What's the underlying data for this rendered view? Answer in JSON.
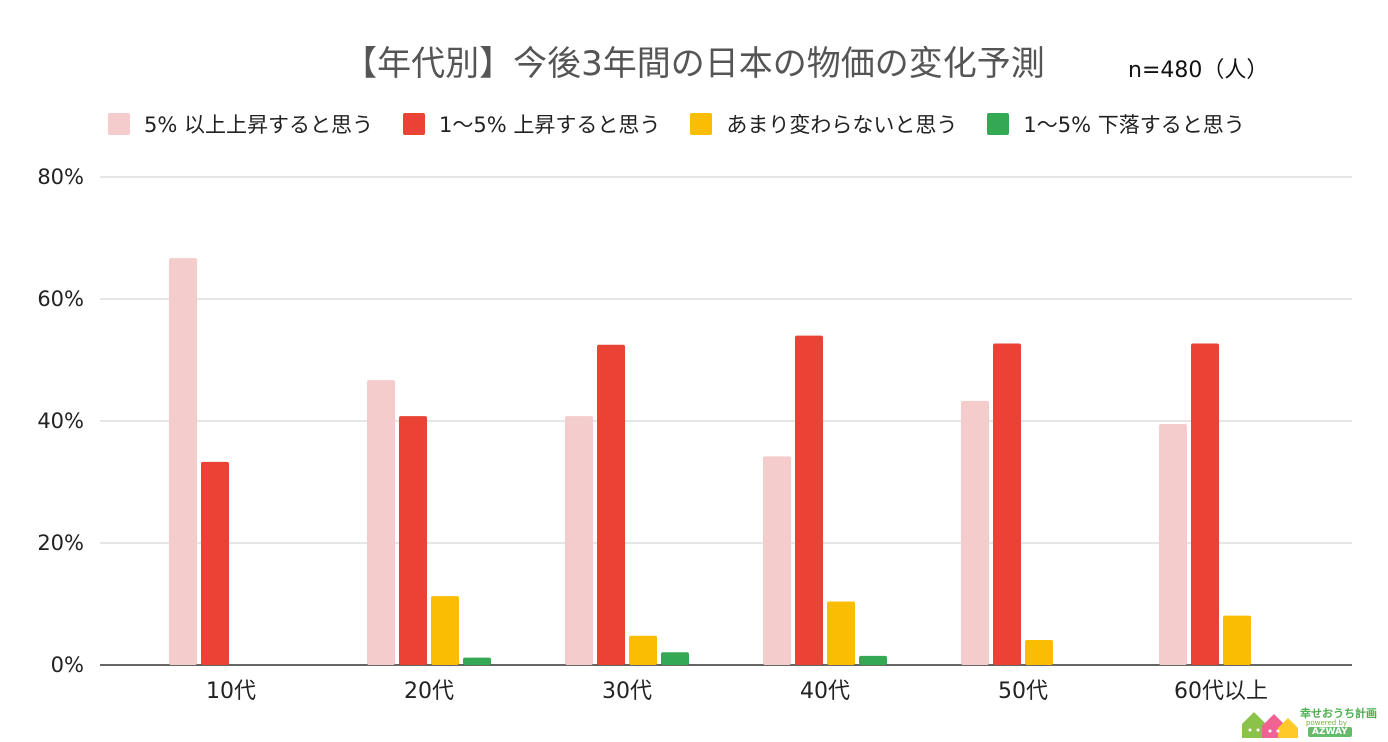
{
  "header": {
    "title": "【年代別】今後3年間の日本の物価の変化予測",
    "sample_size": "n=480（人）"
  },
  "chart_data": {
    "type": "bar",
    "title": "【年代別】今後3年間の日本の物価の変化予測",
    "categories": [
      "10代",
      "20代",
      "30代",
      "40代",
      "50代",
      "60代以上"
    ],
    "series": [
      {
        "name": "5% 以上上昇すると思う",
        "color": "#f4cccc",
        "values": [
          66.7,
          46.7,
          40.8,
          34.2,
          43.3,
          39.5
        ]
      },
      {
        "name": "1〜5% 上昇すると思う",
        "color": "#ea4335",
        "values": [
          33.3,
          40.8,
          52.5,
          54.0,
          52.7,
          52.7
        ]
      },
      {
        "name": "あまり変わらないと思う",
        "color": "#fbbc04",
        "values": [
          0,
          11.3,
          4.8,
          10.4,
          4.1,
          8.1
        ]
      },
      {
        "name": "1〜5% 下落すると思う",
        "color": "#34a853",
        "values": [
          0,
          1.2,
          2.1,
          1.5,
          0,
          0
        ]
      }
    ],
    "y_ticks": [
      "0%",
      "20%",
      "40%",
      "60%",
      "80%"
    ],
    "ylim": [
      0,
      80
    ],
    "y_unit": "%",
    "grid": true,
    "legend_position": "top"
  },
  "brand": {
    "logo_text": "幸せおうち計画",
    "sub_text": "powered by",
    "name": "AZWAY"
  }
}
